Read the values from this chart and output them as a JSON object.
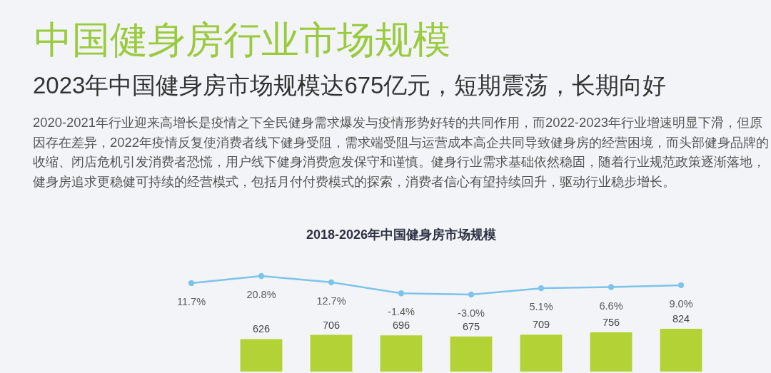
{
  "chart_data": [
    {
      "type": "line",
      "title": "2018-2026年中国健身房市场规模",
      "annotations": [
        "中国健身房行业市场规模",
        "2023年中国健身房市场规模达675亿元，短期震荡，长期向好",
        "2020-2021年行业迎来高增长是疫情之下全民健身需求爆发与疫情形势好转的共同作用，而2022-2023年行业增速明显下滑，但原因存在差异，2022年疫情反复使消费者线下健身受阻，需求端受阻与运营成本高企共同导致健身房的经营困境，而头部健身品牌的收缩、闭店危机引发消费者恐慌，用户线下健身消费愈发保守和谨慎。健身行业需求基础依然稳固，随着行业规范政策逐渐落地，健身房追求更稳健可持续的经营模式，包括月付付费模式的探索，消费者信心有望持续回升，驱动行业稳步增长。"
      ],
      "categories": [
        null,
        null,
        null,
        null,
        null,
        null,
        null,
        null,
        null
      ],
      "color": "#7cc4ea",
      "values": [
        null,
        11.7,
        20.8,
        12.7,
        -1.4,
        -3.0,
        5.1,
        6.6,
        9.0
      ],
      "value_labels": [
        null,
        "11.7%",
        "20.8%",
        "12.7%",
        "-1.4%",
        "-3.0%",
        "5.1%",
        "6.6%",
        "9.0%"
      ],
      "marker": "circle",
      "line_style": "solid",
      "tick_labels": false
    },
    {
      "type": "bar",
      "categories": [
        null,
        null,
        null,
        null,
        null,
        null,
        null,
        null,
        null
      ],
      "color": "#b2d235",
      "values": [
        null,
        null,
        626,
        706,
        696,
        675,
        709,
        756,
        824
      ],
      "data_labels": true,
      "tick_labels": false
    }
  ]
}
